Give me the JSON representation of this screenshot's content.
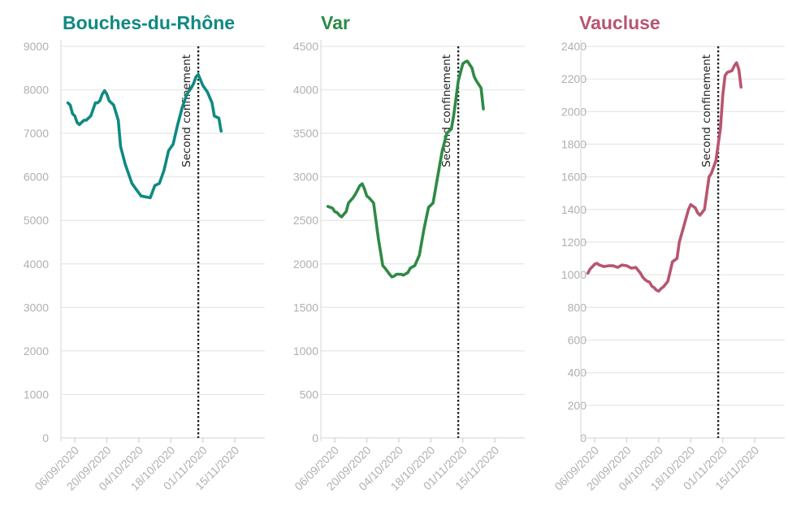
{
  "chart_data": [
    {
      "type": "line",
      "title": "Bouches-du-Rhône",
      "color": "#0e8a82",
      "ylim": [
        0,
        9000
      ],
      "yticks": [
        0,
        1000,
        2000,
        3000,
        4000,
        5000,
        6000,
        7000,
        8000,
        9000
      ],
      "xlim": [
        "2020-09-01",
        "2020-11-21"
      ],
      "xticks": [
        "06/09/2020",
        "20/09/2020",
        "04/10/2020",
        "18/10/2020",
        "01/11/2020",
        "15/11/2020"
      ],
      "annotation": {
        "label": "Second confinement",
        "date": "2020-10-30"
      },
      "series": [
        {
          "x": [
            "2020-09-03",
            "2020-09-04",
            "2020-09-05",
            "2020-09-06",
            "2020-09-07",
            "2020-09-08",
            "2020-09-09",
            "2020-09-10",
            "2020-09-11",
            "2020-09-13",
            "2020-09-15",
            "2020-09-16",
            "2020-09-17",
            "2020-09-18",
            "2020-09-19",
            "2020-09-20",
            "2020-09-21",
            "2020-09-23",
            "2020-09-25",
            "2020-09-26",
            "2020-09-28",
            "2020-09-30",
            "2020-10-01",
            "2020-10-03",
            "2020-10-05",
            "2020-10-07",
            "2020-10-09",
            "2020-10-11",
            "2020-10-13",
            "2020-10-15",
            "2020-10-17",
            "2020-10-19",
            "2020-10-21",
            "2020-10-23",
            "2020-10-25",
            "2020-10-27",
            "2020-10-28",
            "2020-10-29",
            "2020-10-30",
            "2020-11-01",
            "2020-11-03",
            "2020-11-05",
            "2020-11-06",
            "2020-11-08",
            "2020-11-09"
          ],
          "y": [
            7700,
            7650,
            7450,
            7400,
            7250,
            7200,
            7250,
            7300,
            7300,
            7400,
            7700,
            7700,
            7750,
            7900,
            7980,
            7900,
            7750,
            7650,
            7300,
            6700,
            6300,
            6000,
            5850,
            5700,
            5560,
            5540,
            5520,
            5800,
            5850,
            6150,
            6600,
            6750,
            7200,
            7600,
            7900,
            8050,
            8150,
            8300,
            8350,
            8100,
            7950,
            7700,
            7400,
            7350,
            7050
          ]
        }
      ]
    },
    {
      "type": "line",
      "title": "Var",
      "color": "#2e8a45",
      "ylim": [
        0,
        4500
      ],
      "yticks": [
        0,
        500,
        1000,
        1500,
        2000,
        2500,
        3000,
        3500,
        4000,
        4500
      ],
      "xlim": [
        "2020-09-01",
        "2020-11-21"
      ],
      "xticks": [
        "06/09/2020",
        "20/09/2020",
        "04/10/2020",
        "18/10/2020",
        "01/11/2020",
        "15/11/2020"
      ],
      "annotation": {
        "label": "Second confinement",
        "date": "2020-10-30"
      },
      "series": [
        {
          "x": [
            "2020-09-03",
            "2020-09-05",
            "2020-09-06",
            "2020-09-07",
            "2020-09-08",
            "2020-09-09",
            "2020-09-10",
            "2020-09-11",
            "2020-09-12",
            "2020-09-13",
            "2020-09-14",
            "2020-09-15",
            "2020-09-17",
            "2020-09-18",
            "2020-09-19",
            "2020-09-20",
            "2020-09-21",
            "2020-09-23",
            "2020-09-25",
            "2020-09-27",
            "2020-09-28",
            "2020-09-30",
            "2020-10-01",
            "2020-10-02",
            "2020-10-03",
            "2020-10-05",
            "2020-10-06",
            "2020-10-08",
            "2020-10-09",
            "2020-10-11",
            "2020-10-13",
            "2020-10-15",
            "2020-10-17",
            "2020-10-19",
            "2020-10-21",
            "2020-10-23",
            "2020-10-25",
            "2020-10-27",
            "2020-10-28",
            "2020-10-29",
            "2020-10-30",
            "2020-11-01",
            "2020-11-02",
            "2020-11-03",
            "2020-11-05",
            "2020-11-06",
            "2020-11-07",
            "2020-11-09",
            "2020-11-10"
          ],
          "y": [
            2660,
            2640,
            2600,
            2590,
            2560,
            2540,
            2570,
            2600,
            2700,
            2730,
            2760,
            2800,
            2900,
            2920,
            2860,
            2780,
            2760,
            2700,
            2300,
            1980,
            1950,
            1880,
            1850,
            1860,
            1880,
            1880,
            1870,
            1900,
            1950,
            1980,
            2100,
            2400,
            2650,
            2700,
            3000,
            3300,
            3500,
            3550,
            3700,
            3900,
            4100,
            4300,
            4320,
            4330,
            4250,
            4150,
            4100,
            4020,
            3780
          ]
        }
      ]
    },
    {
      "type": "line",
      "title": "Vaucluse",
      "color": "#b85570",
      "ylim": [
        0,
        2400
      ],
      "yticks": [
        0,
        200,
        400,
        600,
        800,
        1000,
        1200,
        1400,
        1600,
        1800,
        2000,
        2200,
        2400
      ],
      "xlim": [
        "2020-09-01",
        "2020-11-21"
      ],
      "xticks": [
        "06/09/2020",
        "20/09/2020",
        "04/10/2020",
        "18/10/2020",
        "01/11/2020",
        "15/11/2020"
      ],
      "annotation": {
        "label": "Second confinement",
        "date": "2020-10-30"
      },
      "series": [
        {
          "x": [
            "2020-09-03",
            "2020-09-04",
            "2020-09-05",
            "2020-09-06",
            "2020-09-07",
            "2020-09-08",
            "2020-09-09",
            "2020-09-10",
            "2020-09-12",
            "2020-09-14",
            "2020-09-16",
            "2020-09-18",
            "2020-09-20",
            "2020-09-22",
            "2020-09-24",
            "2020-09-26",
            "2020-09-27",
            "2020-09-28",
            "2020-09-29",
            "2020-09-30",
            "2020-10-01",
            "2020-10-02",
            "2020-10-03",
            "2020-10-04",
            "2020-10-05",
            "2020-10-06",
            "2020-10-08",
            "2020-10-10",
            "2020-10-12",
            "2020-10-13",
            "2020-10-15",
            "2020-10-17",
            "2020-10-18",
            "2020-10-19",
            "2020-10-20",
            "2020-10-21",
            "2020-10-22",
            "2020-10-24",
            "2020-10-25",
            "2020-10-26",
            "2020-10-27",
            "2020-10-29",
            "2020-10-31",
            "2020-11-01",
            "2020-11-02",
            "2020-11-03",
            "2020-11-05",
            "2020-11-06",
            "2020-11-07",
            "2020-11-08",
            "2020-11-09"
          ],
          "y": [
            1010,
            1035,
            1050,
            1065,
            1070,
            1060,
            1055,
            1050,
            1055,
            1055,
            1045,
            1060,
            1055,
            1040,
            1045,
            1010,
            985,
            970,
            960,
            955,
            930,
            920,
            905,
            900,
            915,
            925,
            960,
            1080,
            1100,
            1200,
            1300,
            1400,
            1430,
            1420,
            1410,
            1380,
            1365,
            1400,
            1500,
            1600,
            1620,
            1700,
            1900,
            2100,
            2220,
            2240,
            2250,
            2280,
            2300,
            2260,
            2150
          ]
        }
      ]
    }
  ]
}
